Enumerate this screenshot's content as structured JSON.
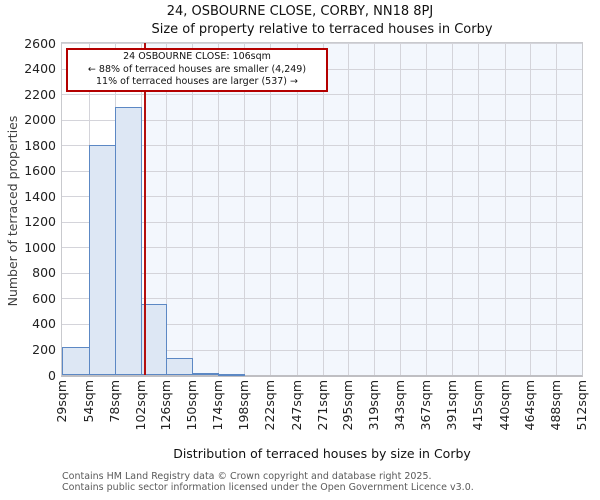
{
  "chart_data": {
    "type": "bar",
    "title": "24, OSBOURNE CLOSE, CORBY, NN18 8PJ",
    "subtitle": "Size of property relative to terraced houses in Corby",
    "xlabel": "Distribution of terraced houses by size in Corby",
    "ylabel": "Number of terraced properties",
    "bin_edges_sqm": [
      29,
      54,
      78,
      102,
      126,
      150,
      174,
      198,
      222,
      247,
      271,
      295,
      319,
      343,
      367,
      391,
      415,
      440,
      464,
      488,
      512
    ],
    "categories": [
      "29sqm",
      "54sqm",
      "78sqm",
      "102sqm",
      "126sqm",
      "150sqm",
      "174sqm",
      "198sqm",
      "222sqm",
      "247sqm",
      "271sqm",
      "295sqm",
      "319sqm",
      "343sqm",
      "367sqm",
      "391sqm",
      "415sqm",
      "440sqm",
      "464sqm",
      "488sqm",
      "512sqm"
    ],
    "values": [
      220,
      1800,
      2100,
      560,
      130,
      15,
      10,
      0,
      0,
      0,
      0,
      0,
      0,
      0,
      0,
      0,
      0,
      0,
      0,
      0
    ],
    "ylim": [
      0,
      2600
    ],
    "yticks": [
      0,
      200,
      400,
      600,
      800,
      1000,
      1200,
      1400,
      1600,
      1800,
      2000,
      2200,
      2400,
      2600
    ],
    "grid": "on",
    "marker": {
      "value_sqm": 106,
      "label": "24 OSBOURNE CLOSE: 106sqm"
    },
    "annotation": {
      "line1": "24 OSBOURNE CLOSE: 106sqm",
      "line2": "← 88% of terraced houses are smaller (4,249)",
      "line3": "11% of terraced houses are larger (537) →"
    },
    "colors": {
      "bar_fill": "#dde7f4",
      "bar_border": "#5c88c4",
      "marker_line": "#b40f0f",
      "annotation_border": "#b40000",
      "shade_right_of_marker": "#f3f7fd",
      "gridline": "#d4d4da"
    }
  },
  "footer": {
    "line1": "Contains HM Land Registry data © Crown copyright and database right 2025.",
    "line2": "Contains public sector information licensed under the Open Government Licence v3.0."
  }
}
